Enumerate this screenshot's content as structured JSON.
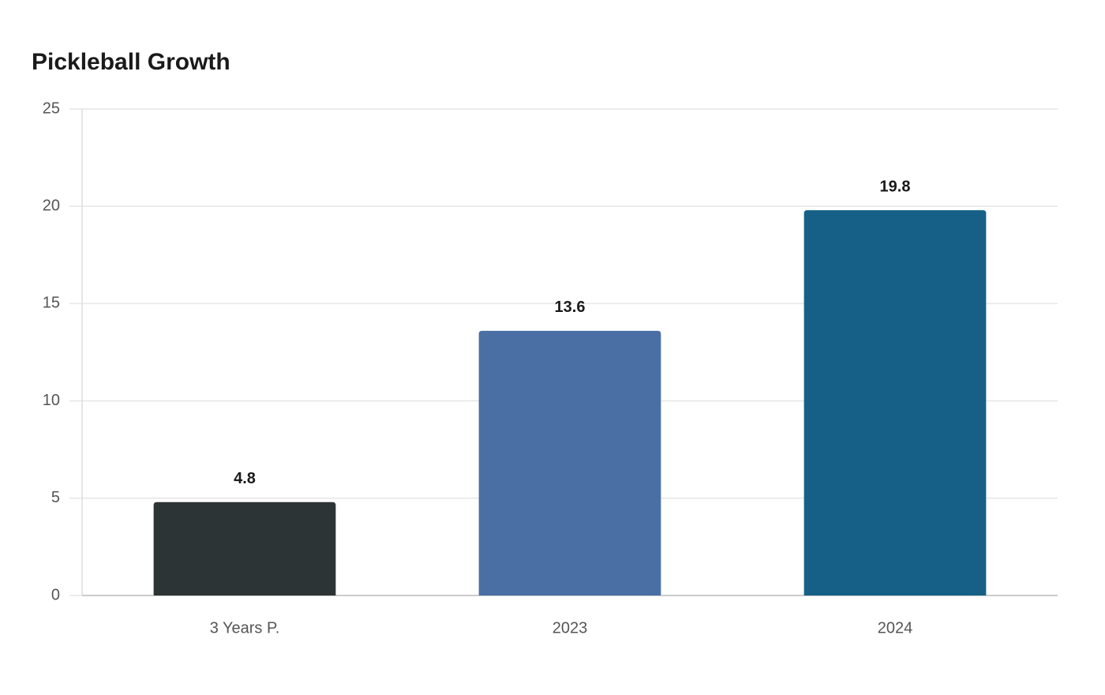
{
  "chart_data": {
    "type": "bar",
    "title": "Pickleball Growth",
    "categories": [
      "3 Years P.",
      "2023",
      "2024"
    ],
    "values": [
      4.8,
      13.6,
      19.8
    ],
    "colors": [
      "#2d3436",
      "#4a6fa5",
      "#166088"
    ],
    "ylim": [
      0,
      25
    ],
    "yticks": [
      0,
      5,
      10,
      15,
      20,
      25
    ],
    "grid": true
  }
}
